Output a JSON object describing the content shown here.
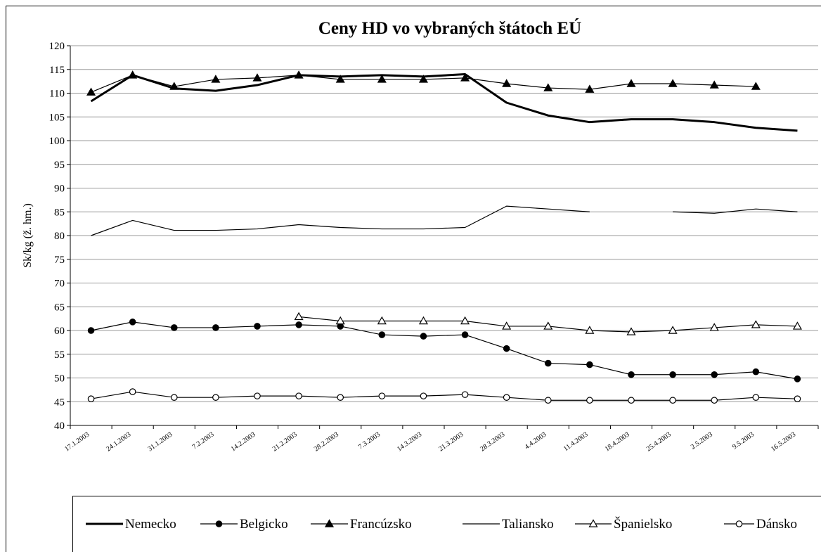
{
  "chart_data": {
    "type": "line",
    "title": "Ceny HD  vo vybraných štátoch  EÚ",
    "y_label": "Sk/kg (ž. hm.)",
    "categories": [
      "17.1.2003",
      "24.1.2003",
      "31.1.2003",
      "7.2.2003",
      "14.2.2003",
      "21.2.2003",
      "28.2.2003",
      "7.3.2003",
      "14.3.2003",
      "21.3.2003",
      "28.3.2003",
      "4.4.2003",
      "11.4.2003",
      "18.4.2003",
      "25.4.2003",
      "2.5.2003",
      "9.5.2003",
      "16.5.2003"
    ],
    "ylim": [
      40,
      120
    ],
    "yticks": [
      40,
      45,
      50,
      55,
      60,
      65,
      70,
      75,
      80,
      85,
      90,
      95,
      100,
      105,
      110,
      115,
      120
    ],
    "grid": true,
    "legend": "bottom",
    "series": [
      {
        "name": "Nemecko",
        "color": "#000000",
        "line_width": 3,
        "marker": "none",
        "values": [
          108.3,
          113.8,
          111.0,
          110.5,
          111.7,
          113.8,
          113.5,
          113.8,
          113.5,
          114.0,
          108.0,
          105.3,
          103.9,
          104.5,
          104.5,
          103.9,
          102.7,
          102.1
        ]
      },
      {
        "name": "Belgicko",
        "color": "#000000",
        "line_width": 1.2,
        "marker": "circle-filled",
        "values": [
          60.0,
          61.8,
          60.6,
          60.6,
          60.9,
          61.2,
          60.9,
          59.1,
          58.8,
          59.1,
          56.2,
          53.1,
          52.8,
          50.7,
          50.7,
          50.7,
          51.3,
          49.8
        ]
      },
      {
        "name": "Francúzsko",
        "color": "#000000",
        "line_width": 1.2,
        "marker": "triangle-filled",
        "values": [
          110.2,
          113.8,
          111.4,
          112.9,
          113.2,
          113.8,
          112.9,
          112.9,
          112.9,
          113.2,
          112.0,
          111.1,
          110.8,
          112.0,
          112.0,
          111.7,
          111.4,
          null
        ]
      },
      {
        "name": "Taliansko",
        "color": "#000000",
        "line_width": 1.2,
        "marker": "none",
        "values": [
          80.0,
          83.2,
          81.1,
          81.1,
          81.4,
          82.3,
          81.7,
          81.4,
          81.4,
          81.7,
          86.2,
          85.6,
          85.0,
          null,
          85.0,
          84.7,
          85.6,
          85.0
        ]
      },
      {
        "name": "Španielsko",
        "color": "#000000",
        "line_width": 1.2,
        "marker": "triangle-open",
        "values": [
          null,
          null,
          null,
          null,
          null,
          62.9,
          62.0,
          62.0,
          62.0,
          62.0,
          60.9,
          60.9,
          60.0,
          59.7,
          60.0,
          60.6,
          61.2,
          60.9
        ]
      },
      {
        "name": "Dánsko",
        "color": "#000000",
        "line_width": 1.2,
        "marker": "circle-open",
        "values": [
          45.6,
          47.1,
          45.9,
          45.9,
          46.2,
          46.2,
          45.9,
          46.2,
          46.2,
          46.5,
          45.9,
          45.3,
          45.3,
          45.3,
          45.3,
          45.3,
          45.9,
          45.6
        ]
      }
    ]
  }
}
